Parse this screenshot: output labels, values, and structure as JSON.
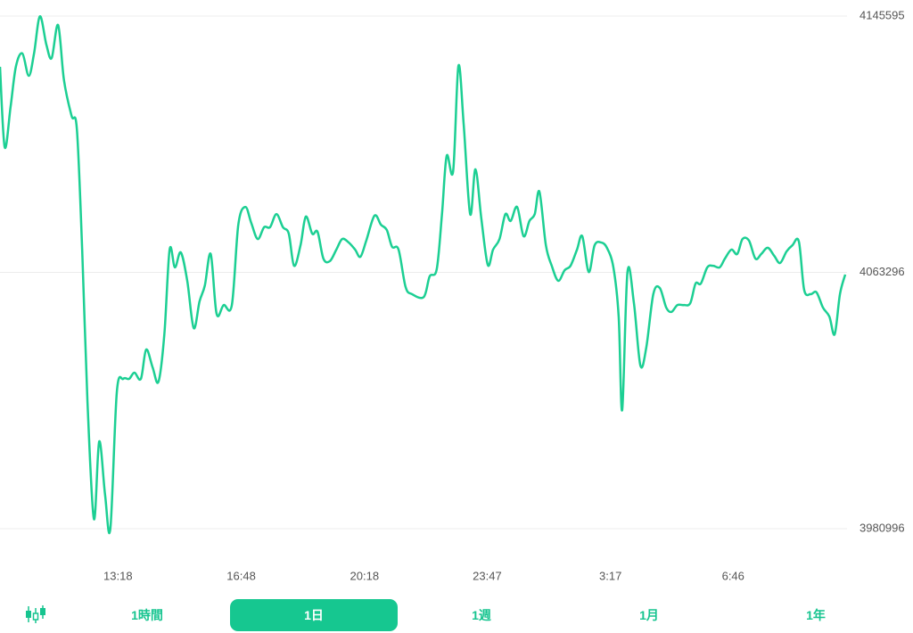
{
  "chart_data": {
    "type": "line",
    "color": "#1ccf93",
    "grid": true,
    "xlim": [
      597,
      2037
    ],
    "ylim": [
      3980996,
      4145595
    ],
    "yticks": [
      3980996,
      4063296,
      4145595
    ],
    "xticks": [
      {
        "value": 798,
        "label": "13:18"
      },
      {
        "value": 1008,
        "label": "16:48"
      },
      {
        "value": 1218,
        "label": "20:18"
      },
      {
        "value": 1427,
        "label": "23:47"
      },
      {
        "value": 1637,
        "label": "3:17"
      },
      {
        "value": 1846,
        "label": "6:46"
      }
    ],
    "x": [
      597,
      605,
      615,
      624,
      635,
      646,
      655,
      665,
      676,
      685,
      696,
      706,
      719,
      728,
      737,
      746,
      757,
      766,
      776,
      785,
      796,
      807,
      817,
      826,
      837,
      846,
      857,
      867,
      877,
      886,
      895,
      905,
      916,
      927,
      937,
      946,
      956,
      966,
      978,
      992,
      1003,
      1015,
      1025,
      1036,
      1047,
      1057,
      1068,
      1079,
      1089,
      1098,
      1109,
      1118,
      1129,
      1138,
      1148,
      1159,
      1170,
      1180,
      1191,
      1202,
      1211,
      1221,
      1235,
      1246,
      1256,
      1265,
      1276,
      1288,
      1299,
      1319,
      1329,
      1341,
      1350,
      1358,
      1369,
      1378,
      1387,
      1398,
      1407,
      1417,
      1428,
      1437,
      1448,
      1458,
      1467,
      1478,
      1489,
      1499,
      1508,
      1516,
      1527,
      1537,
      1548,
      1559,
      1569,
      1580,
      1589,
      1600,
      1610,
      1621,
      1631,
      1642,
      1651,
      1657,
      1666,
      1677,
      1688,
      1698,
      1710,
      1721,
      1732,
      1741,
      1751,
      1762,
      1773,
      1782,
      1791,
      1802,
      1812,
      1823,
      1832,
      1843,
      1853,
      1862,
      1873,
      1884,
      1894,
      1905,
      1916,
      1926,
      1937,
      1947,
      1958,
      1967,
      1978,
      1988,
      1999,
      2010,
      2019,
      2028,
      2037
    ],
    "values": [
      4129300,
      4103500,
      4116400,
      4129300,
      4133600,
      4126400,
      4133600,
      4145500,
      4136400,
      4132100,
      4142700,
      4125000,
      4113500,
      4109200,
      4070600,
      4021900,
      3984100,
      4009000,
      3991900,
      3981000,
      4024800,
      4029100,
      4029100,
      4031100,
      4029100,
      4038500,
      4032800,
      4028200,
      4043400,
      4070600,
      4064900,
      4069700,
      4060600,
      4045400,
      4054000,
      4059100,
      4069200,
      4050000,
      4052800,
      4052800,
      4078600,
      4084300,
      4079200,
      4074000,
      4077800,
      4077800,
      4082000,
      4077800,
      4075700,
      4065400,
      4072000,
      4081200,
      4075700,
      4076300,
      4067700,
      4066900,
      4070600,
      4074000,
      4072900,
      4070600,
      4068300,
      4073500,
      4081500,
      4078600,
      4076900,
      4071500,
      4070600,
      4058600,
      4056300,
      4055400,
      4062000,
      4064300,
      4082000,
      4100700,
      4095800,
      4129600,
      4110700,
      4082000,
      4096400,
      4080600,
      4065700,
      4070600,
      4074000,
      4082000,
      4079800,
      4084300,
      4074900,
      4079800,
      4082000,
      4089200,
      4072000,
      4065400,
      4060600,
      4064000,
      4065400,
      4070600,
      4074900,
      4063400,
      4072000,
      4072900,
      4071200,
      4064900,
      4049100,
      4019100,
      4063400,
      4053400,
      4033400,
      4039100,
      4056300,
      4058300,
      4052000,
      4050600,
      4052800,
      4052800,
      4053400,
      4059700,
      4059700,
      4064900,
      4065400,
      4064900,
      4067700,
      4070600,
      4069200,
      4074000,
      4073500,
      4067700,
      4069200,
      4071200,
      4068600,
      4066300,
      4070000,
      4072000,
      4073200,
      4057700,
      4056300,
      4056900,
      4052000,
      4049100,
      4043400,
      4056300,
      4062600
    ]
  },
  "tabs": {
    "items": [
      "1時間",
      "1日",
      "1週",
      "1月",
      "1年"
    ],
    "selected": 1
  }
}
